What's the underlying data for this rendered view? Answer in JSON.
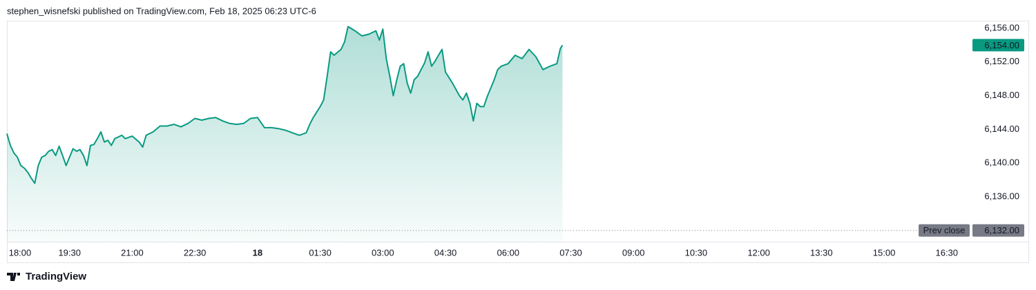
{
  "header": "stephen_wisnefski published on TradingView.com, Feb 18, 2025 06:23 UTC-6",
  "footer": "TradingView",
  "chart_data": {
    "type": "area",
    "color": "#089981",
    "x": [
      0,
      5,
      10,
      15,
      20,
      25,
      30,
      35,
      40,
      45,
      50,
      55,
      60,
      65,
      70,
      75,
      80,
      85,
      90,
      95,
      100,
      105,
      110,
      115,
      120,
      125,
      130,
      135,
      140,
      145,
      150,
      155,
      160,
      165,
      170,
      180,
      190,
      195,
      200,
      210,
      220,
      230,
      240,
      250,
      260,
      270,
      280,
      290,
      300,
      310,
      320,
      330,
      340,
      350,
      360,
      370,
      380,
      390,
      400,
      410,
      420,
      430,
      435,
      440,
      450,
      455,
      460,
      465,
      470,
      480,
      485,
      490,
      500,
      510,
      520,
      530,
      535,
      540,
      545,
      550,
      555,
      560,
      565,
      570,
      575,
      580,
      585,
      590,
      595,
      600,
      605,
      610,
      615,
      620,
      625,
      630,
      640,
      650,
      655,
      660,
      665,
      670,
      675,
      680,
      685,
      690,
      700,
      705,
      710,
      720,
      730,
      740,
      750,
      760,
      770,
      780,
      790,
      795,
      798
    ],
    "values": [
      6143.5,
      6142.1,
      6141.2,
      6140.7,
      6139.7,
      6139.4,
      6138.9,
      6138.2,
      6137.6,
      6139.7,
      6140.7,
      6140.9,
      6141.4,
      6141.6,
      6140.9,
      6142.0,
      6140.9,
      6139.7,
      6140.7,
      6141.7,
      6141.4,
      6141.6,
      6140.9,
      6139.7,
      6142.1,
      6142.2,
      6142.9,
      6143.7,
      6142.5,
      6142.7,
      6142.1,
      6142.9,
      6143.1,
      6143.3,
      6142.9,
      6143.2,
      6142.5,
      6141.9,
      6143.3,
      6143.7,
      6144.4,
      6144.4,
      6144.6,
      6144.3,
      6144.7,
      6145.3,
      6145.1,
      6145.3,
      6145.4,
      6145.0,
      6144.7,
      6144.6,
      6144.7,
      6145.3,
      6145.4,
      6144.2,
      6144.2,
      6144.1,
      6143.9,
      6143.6,
      6143.3,
      6143.6,
      6144.6,
      6145.4,
      6146.7,
      6147.5,
      6150.3,
      6153.2,
      6152.8,
      6153.5,
      6154.4,
      6156.2,
      6155.7,
      6155.1,
      6155.3,
      6155.7,
      6154.6,
      6155.9,
      6152.4,
      6150.3,
      6148.0,
      6149.9,
      6151.5,
      6151.8,
      6149.5,
      6148.3,
      6149.9,
      6150.3,
      6151.1,
      6151.9,
      6153.2,
      6151.5,
      6152.1,
      6152.8,
      6153.5,
      6150.8,
      6149.5,
      6148.0,
      6147.5,
      6148.3,
      6147.1,
      6145.0,
      6147.1,
      6146.7,
      6146.7,
      6147.9,
      6149.9,
      6151.1,
      6151.5,
      6151.8,
      6152.8,
      6152.4,
      6153.5,
      6152.6,
      6151.1,
      6151.5,
      6151.8,
      6153.6,
      6154.0
    ],
    "xlim": [
      0,
      1379
    ],
    "xticks": [
      {
        "value": 0,
        "label": "18:00"
      },
      {
        "value": 90,
        "label": "19:30"
      },
      {
        "value": 180,
        "label": "21:00"
      },
      {
        "value": 270,
        "label": "22:30"
      },
      {
        "value": 360,
        "label": "18",
        "bold": true
      },
      {
        "value": 450,
        "label": "01:30"
      },
      {
        "value": 540,
        "label": "03:00"
      },
      {
        "value": 630,
        "label": "04:30"
      },
      {
        "value": 720,
        "label": "06:00"
      },
      {
        "value": 810,
        "label": "07:30"
      },
      {
        "value": 900,
        "label": "09:00"
      },
      {
        "value": 990,
        "label": "10:30"
      },
      {
        "value": 1080,
        "label": "12:00"
      },
      {
        "value": 1170,
        "label": "13:30"
      },
      {
        "value": 1260,
        "label": "15:00"
      },
      {
        "value": 1350,
        "label": "16:30"
      }
    ],
    "ylim": [
      6130.67,
      6156.9
    ],
    "yticks": [
      {
        "value": 6136,
        "label": "6,136.00"
      },
      {
        "value": 6140,
        "label": "6,140.00"
      },
      {
        "value": 6144,
        "label": "6,144.00"
      },
      {
        "value": 6148,
        "label": "6,148.00"
      },
      {
        "value": 6152,
        "label": "6,152.00"
      },
      {
        "value": 6156,
        "label": "6,156.00"
      }
    ],
    "last_price": {
      "value": 6154,
      "label": "6,154.00"
    },
    "prev_close": {
      "name": "Prev close",
      "value": 6132,
      "label": "6,132.00",
      "color": "#787b86"
    }
  }
}
